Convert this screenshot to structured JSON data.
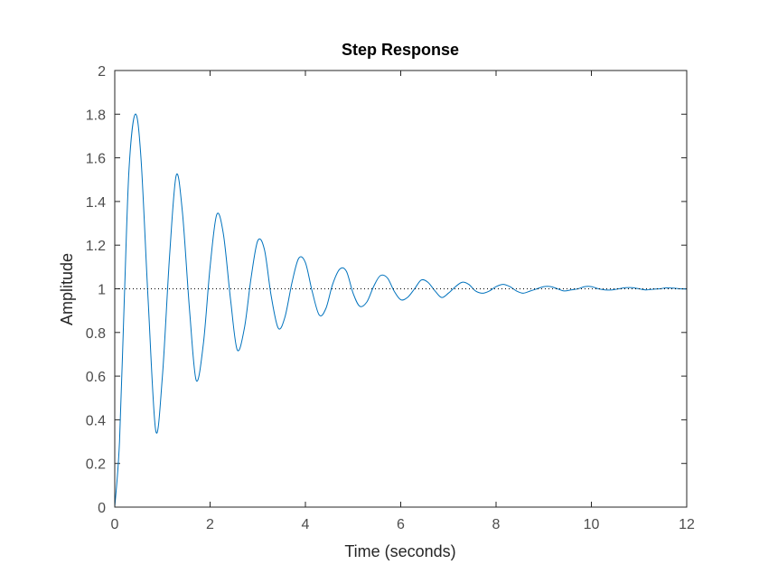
{
  "chart_data": {
    "type": "line",
    "title": "Step Response",
    "xlabel": "Time (seconds)",
    "ylabel": "Amplitude",
    "xlim": [
      0,
      12
    ],
    "ylim": [
      0,
      2
    ],
    "xticks": [
      0,
      2,
      4,
      6,
      8,
      10,
      12
    ],
    "yticks": [
      0,
      0.2,
      0.4,
      0.6,
      0.8,
      1,
      1.2,
      1.4,
      1.6,
      1.8,
      2
    ],
    "xtick_labels": [
      "0",
      "2",
      "4",
      "6",
      "8",
      "10",
      "12"
    ],
    "ytick_labels": [
      "0",
      "0.2",
      "0.4",
      "0.6",
      "0.8",
      "1",
      "1.2",
      "1.4",
      "1.6",
      "1.8",
      "2"
    ],
    "grid": false,
    "series": [
      {
        "type": "line",
        "color": "#0072bd",
        "x": [
          0,
          0.1,
          0.2,
          0.3,
          0.43,
          0.55,
          0.7,
          0.86,
          1.0,
          1.15,
          1.29,
          1.42,
          1.57,
          1.71,
          1.86,
          2.0,
          2.14,
          2.28,
          2.43,
          2.57,
          2.72,
          2.86,
          3.0,
          3.14,
          3.28,
          3.43,
          3.57,
          3.72,
          3.86,
          4.0,
          4.14,
          4.29,
          4.43,
          4.57,
          4.72,
          4.86,
          5.0,
          5.14,
          5.29,
          5.43,
          5.57,
          5.72,
          5.86,
          6.0,
          6.14,
          6.29,
          6.43,
          6.57,
          6.72,
          6.86,
          7.0,
          7.15,
          7.29,
          7.43,
          7.57,
          7.72,
          7.86,
          8.0,
          8.15,
          8.29,
          8.43,
          8.57,
          8.72,
          8.86,
          9.0,
          9.15,
          9.29,
          9.43,
          9.57,
          9.72,
          9.86,
          10.0,
          10.15,
          10.29,
          10.43,
          10.57,
          10.72,
          10.86,
          11.0,
          11.15,
          11.29,
          11.43,
          11.57,
          11.72,
          11.86,
          12.0
        ],
        "y": [
          0,
          0.3,
          0.95,
          1.55,
          1.8,
          1.6,
          0.95,
          0.35,
          0.6,
          1.15,
          1.52,
          1.35,
          0.9,
          0.58,
          0.75,
          1.1,
          1.34,
          1.25,
          0.95,
          0.72,
          0.82,
          1.05,
          1.22,
          1.18,
          0.97,
          0.82,
          0.87,
          1.03,
          1.14,
          1.12,
          0.99,
          0.88,
          0.91,
          1.02,
          1.09,
          1.08,
          0.98,
          0.92,
          0.94,
          1.01,
          1.06,
          1.05,
          0.99,
          0.95,
          0.96,
          1.0,
          1.04,
          1.03,
          0.99,
          0.96,
          0.98,
          1.01,
          1.03,
          1.02,
          0.99,
          0.98,
          0.99,
          1.01,
          1.02,
          1.01,
          0.99,
          0.98,
          0.99,
          1.0,
          1.01,
          1.01,
          1.0,
          0.99,
          0.995,
          1.0,
          1.01,
          1.01,
          1.0,
          0.995,
          0.995,
          1.0,
          1.005,
          1.005,
          1.0,
          0.995,
          0.998,
          1.0,
          1.004,
          1.003,
          1.0,
          0.999
        ]
      },
      {
        "type": "reference-line",
        "style": "dotted",
        "color": "#000000",
        "x": [
          0,
          12
        ],
        "y": [
          1,
          1
        ]
      }
    ]
  }
}
